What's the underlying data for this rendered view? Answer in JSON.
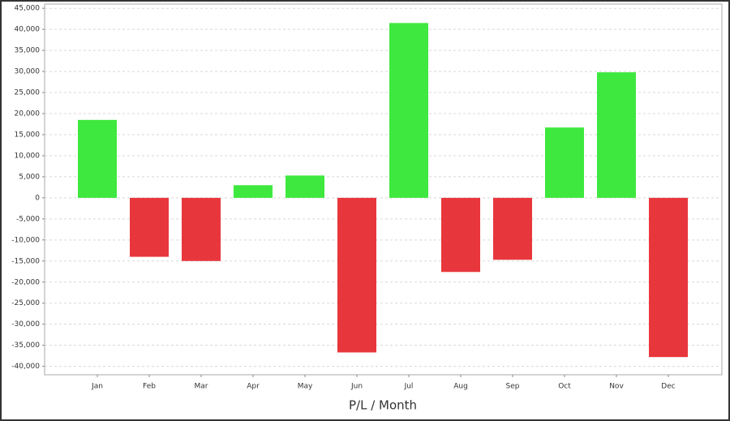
{
  "chart_data": {
    "type": "bar",
    "x_label": "P/L / Month",
    "categories": [
      "Jan",
      "Feb",
      "Mar",
      "Apr",
      "May",
      "Jun",
      "Jul",
      "Aug",
      "Sep",
      "Oct",
      "Nov",
      "Dec"
    ],
    "values": [
      18500,
      -14000,
      -15000,
      3000,
      5300,
      -36700,
      41500,
      -17600,
      -14700,
      16700,
      29800,
      -37800
    ],
    "positive_color": "#3fe83f",
    "negative_color": "#e8373c",
    "ylim": [
      -42000,
      46000
    ],
    "yticks": [
      {
        "value": -40000,
        "label": "-40,000"
      },
      {
        "value": -35000,
        "label": "-35,000"
      },
      {
        "value": -30000,
        "label": "-30,000"
      },
      {
        "value": -25000,
        "label": "-25,000"
      },
      {
        "value": -20000,
        "label": "-20,000"
      },
      {
        "value": -15000,
        "label": "-15,000"
      },
      {
        "value": -10000,
        "label": "-10,000"
      },
      {
        "value": -5000,
        "label": "-5,000"
      },
      0,
      {
        "value": 5000,
        "label": "5,000"
      },
      {
        "value": 10000,
        "label": "10,000"
      },
      {
        "value": 15000,
        "label": "15,000"
      },
      {
        "value": 20000,
        "label": "20,000"
      },
      {
        "value": 25000,
        "label": "25,000"
      },
      {
        "value": 30000,
        "label": "30,000"
      },
      {
        "value": 35000,
        "label": "35,000"
      },
      {
        "value": 40000,
        "label": "40,000"
      },
      {
        "value": 45000,
        "label": "45,000"
      }
    ],
    "grid": true
  }
}
